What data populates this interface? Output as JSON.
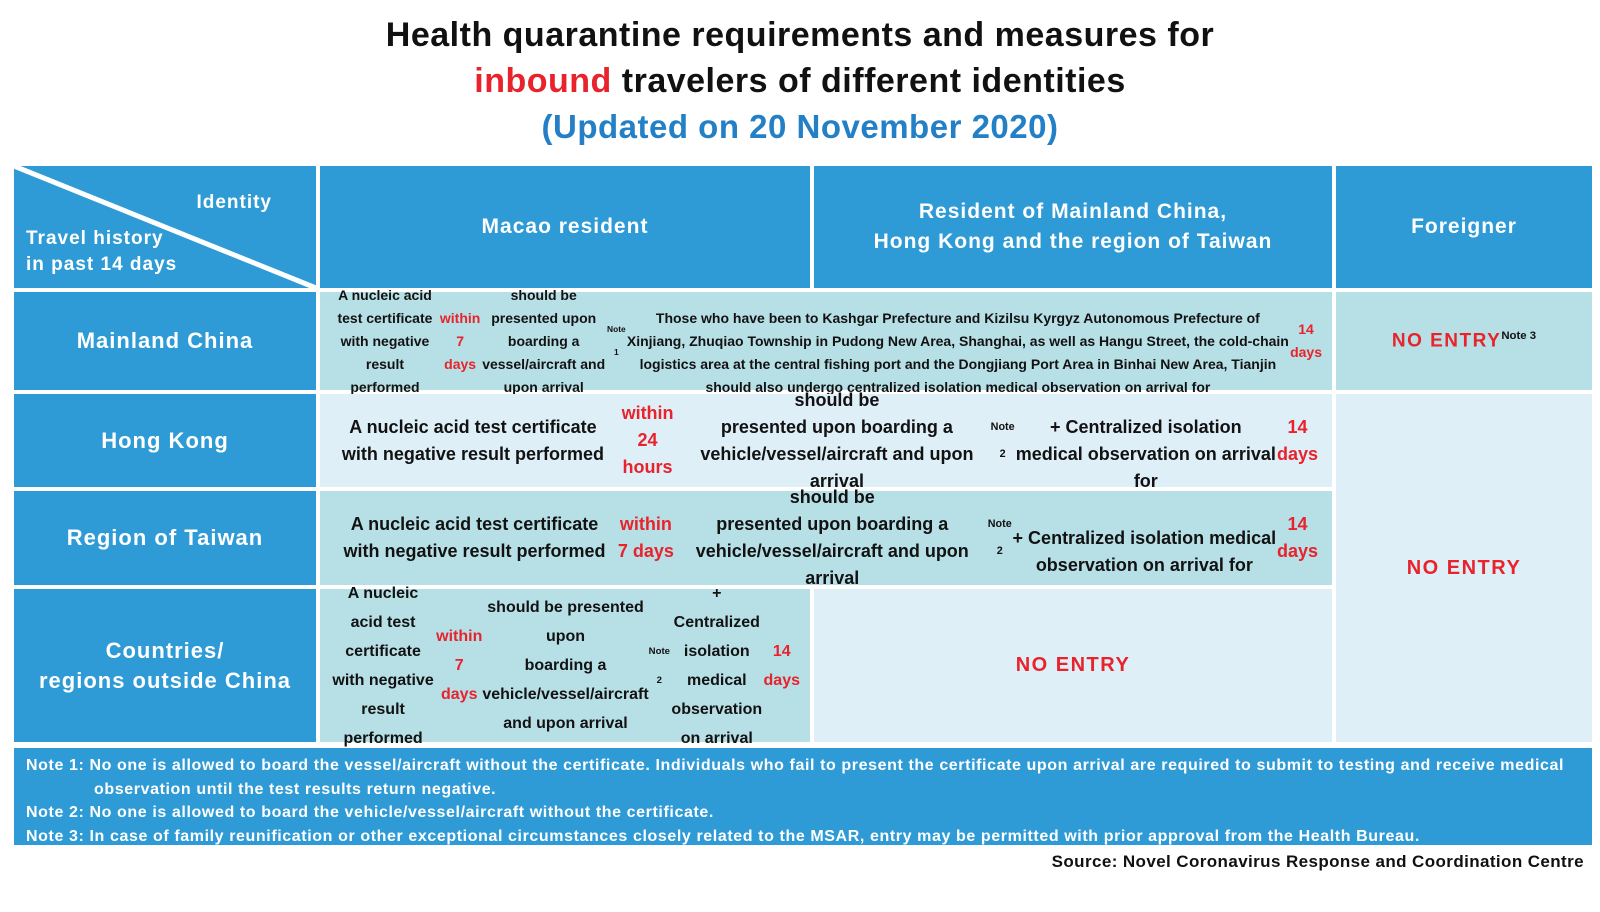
{
  "colors": {
    "header_blue": "#2e9bd6",
    "cell_medium": "#b7dfe6",
    "cell_light": "#dfeff8",
    "red": "#e8232b",
    "title_blue": "#2380c6"
  },
  "title": {
    "line1": "Health quarantine requirements and measures for",
    "line2": [
      {
        "t": "inbound",
        "s": "red"
      },
      {
        "t": " travelers of different identities"
      }
    ],
    "line3": "(Updated on 20 November 2020)"
  },
  "table": {
    "corner": {
      "identity": "Identity",
      "travel1": "Travel history",
      "travel2": "in past 14 days"
    },
    "headers": {
      "macao": "Macao resident",
      "mainland_line1": "Resident of Mainland China,",
      "mainland_line2": "Hong Kong and the region of Taiwan",
      "foreigner": "Foreigner"
    },
    "row_labels": {
      "r1": "Mainland China",
      "r2": "Hong Kong",
      "r3": "Region of Taiwan",
      "r4_line1": "Countries/",
      "r4_line2": "regions outside China"
    },
    "cells": {
      "mainland_req": [
        {
          "t": "A nucleic acid test certificate with negative result performed "
        },
        {
          "t": "within 7 days",
          "s": "red"
        },
        {
          "t": " should be presented upon boarding a vessel/aircraft and upon arrival "
        },
        {
          "t": "Note 1",
          "s": "sup"
        },
        {
          "t": "\nThose who have been to Kashgar Prefecture and Kizilsu Kyrgyz Autonomous Prefecture of Xinjiang, Zhuqiao Township in Pudong New Area, Shanghai, as well as Hangu Street, the cold-chain logistics area at the central fishing port and the Dongjiang Port Area in Binhai New Area, Tianjin should also undergo centralized isolation medical observation on arrival for "
        },
        {
          "t": "14 days",
          "s": "red"
        }
      ],
      "mainland_foreigner": [
        {
          "t": "NO ENTRY",
          "s": "red"
        },
        {
          "t": "Note 3",
          "s": "sup"
        }
      ],
      "hongkong_req": [
        {
          "t": "A nucleic acid test certificate with negative result performed "
        },
        {
          "t": "within 24 hours",
          "s": "red"
        },
        {
          "t": " should be\npresented upon boarding a vehicle/vessel/aircraft and upon arrival "
        },
        {
          "t": "Note 2",
          "s": "sup"
        },
        {
          "t": "\n+ Centralized isolation medical observation on arrival for "
        },
        {
          "t": "14 days",
          "s": "red"
        }
      ],
      "taiwan_req": [
        {
          "t": "A nucleic acid test certificate with negative result performed "
        },
        {
          "t": "within 7 days",
          "s": "red"
        },
        {
          "t": " should be\npresented upon boarding a vehicle/vessel/aircraft and upon arrival "
        },
        {
          "t": "Note 2",
          "s": "sup"
        },
        {
          "t": "\n+ Centralized isolation medical observation on arrival for "
        },
        {
          "t": "14 days",
          "s": "red"
        }
      ],
      "outside_macao_req": [
        {
          "t": "A nucleic acid test certificate with negative result\nperformed "
        },
        {
          "t": "within 7 days",
          "s": "red"
        },
        {
          "t": " should be presented upon\nboarding a vehicle/vessel/aircraft and upon arrival "
        },
        {
          "t": "Note 2",
          "s": "sup"
        },
        {
          "t": "\n+ Centralized isolation medical observation\non arrival for "
        },
        {
          "t": "14 days",
          "s": "red"
        }
      ],
      "outside_mid_noentry": [
        {
          "t": "NO ENTRY",
          "s": "red"
        }
      ],
      "foreigner_merged_noentry": [
        {
          "t": "NO ENTRY",
          "s": "red"
        }
      ]
    }
  },
  "notes": [
    {
      "label": "Note 1:",
      "text": " No one is allowed to board the vessel/aircraft without the certificate. Individuals who fail to present the certificate upon arrival are required to submit to testing and receive medical observation until the test results return negative."
    },
    {
      "label": "Note 2:",
      "text": " No one is allowed to board the vehicle/vessel/aircraft without the certificate."
    },
    {
      "label": "Note 3:",
      "text": " In case of family reunification or other exceptional circumstances closely related to the MSAR, entry may be permitted with prior approval from the Health Bureau."
    }
  ],
  "source": "Source: Novel Coronavirus Response and Coordination Centre"
}
